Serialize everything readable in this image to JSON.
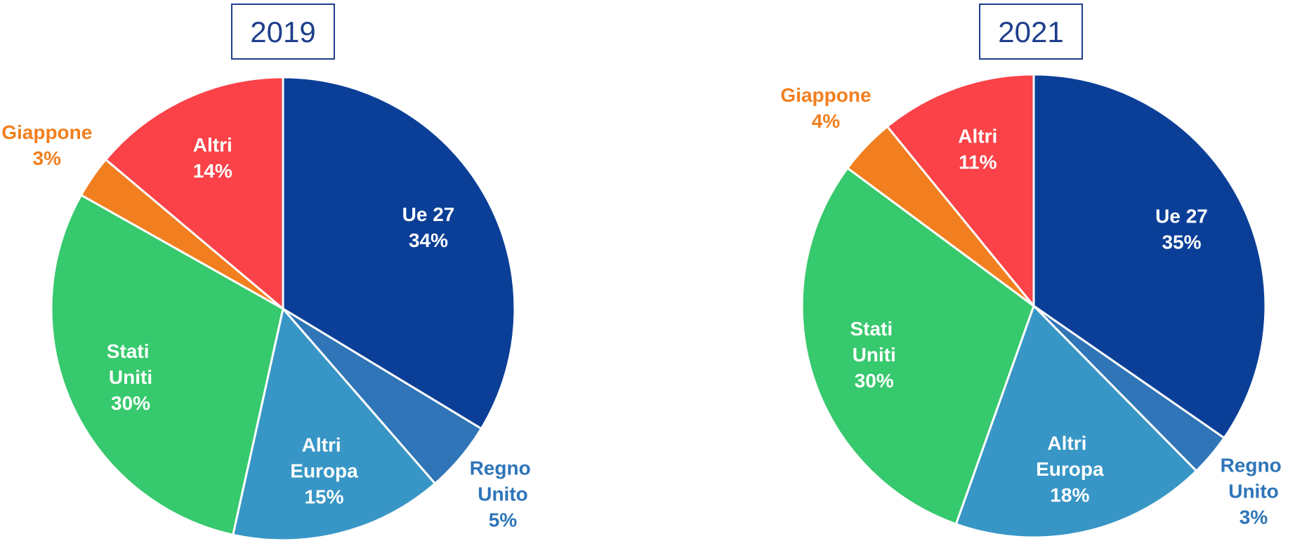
{
  "chart_data": [
    {
      "type": "pie",
      "title": "2019",
      "categories": [
        "Ue 27",
        "Regno Unito",
        "Altri Europa",
        "Stati Uniti",
        "Giappone",
        "Altri"
      ],
      "values": [
        34,
        5,
        15,
        30,
        3,
        14
      ],
      "value_labels": [
        "34%",
        "5%",
        "15%",
        "30%",
        "3%",
        "14%"
      ],
      "colors": [
        "#0b3f97",
        "#2f75b8",
        "#3896c6",
        "#37c96d",
        "#f27f1f",
        "#fa4248"
      ]
    },
    {
      "type": "pie",
      "title": "2021",
      "categories": [
        "Ue 27",
        "Regno Unito",
        "Altri Europa",
        "Stati Uniti",
        "Giappone",
        "Altri"
      ],
      "values": [
        35,
        3,
        18,
        30,
        4,
        11
      ],
      "value_labels": [
        "35%",
        "3%",
        "18%",
        "30%",
        "4%",
        "11%"
      ],
      "colors": [
        "#0b3f97",
        "#2f75b8",
        "#3896c6",
        "#37c96d",
        "#f27f1f",
        "#fa4248"
      ]
    }
  ]
}
